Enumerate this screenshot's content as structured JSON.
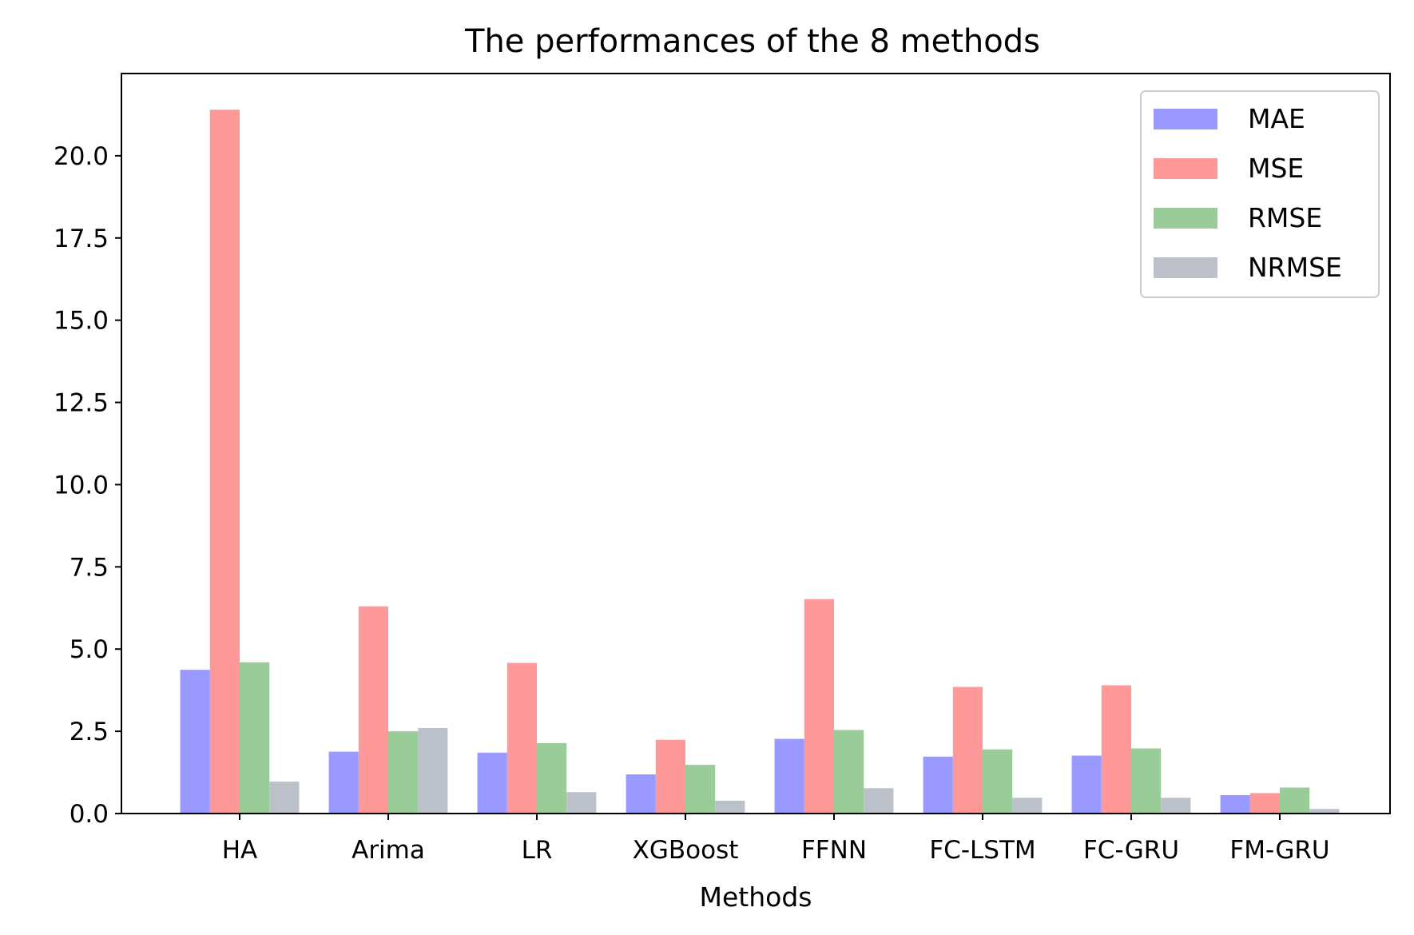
{
  "chart_data": {
    "type": "bar",
    "title": "The performances of the 8 methods",
    "xlabel": "Methods",
    "ylabel": "",
    "categories": [
      "HA",
      "Arima",
      "LR",
      "XGBoost",
      "FFNN",
      "FC-LSTM",
      "FC-GRU",
      "FM-GRU"
    ],
    "series": [
      {
        "name": "MAE",
        "color": "#9999ff",
        "values": [
          4.37,
          1.88,
          1.85,
          1.19,
          2.27,
          1.73,
          1.76,
          0.56
        ]
      },
      {
        "name": "MSE",
        "color": "#ff9999",
        "values": [
          21.4,
          6.3,
          4.58,
          2.24,
          6.52,
          3.85,
          3.9,
          0.62
        ]
      },
      {
        "name": "RMSE",
        "color": "#99cc99",
        "values": [
          4.6,
          2.5,
          2.14,
          1.48,
          2.54,
          1.95,
          1.98,
          0.79
        ]
      },
      {
        "name": "NRMSE",
        "color": "#bcc1c9",
        "values": [
          0.97,
          2.6,
          0.65,
          0.39,
          0.77,
          0.48,
          0.48,
          0.14
        ]
      }
    ],
    "yticks": [
      "0.0",
      "2.5",
      "5.0",
      "7.5",
      "10.0",
      "12.5",
      "15.0",
      "17.5",
      "20.0"
    ],
    "ylim": [
      0,
      22.5
    ],
    "grid": false,
    "legend_position": "top-right"
  }
}
